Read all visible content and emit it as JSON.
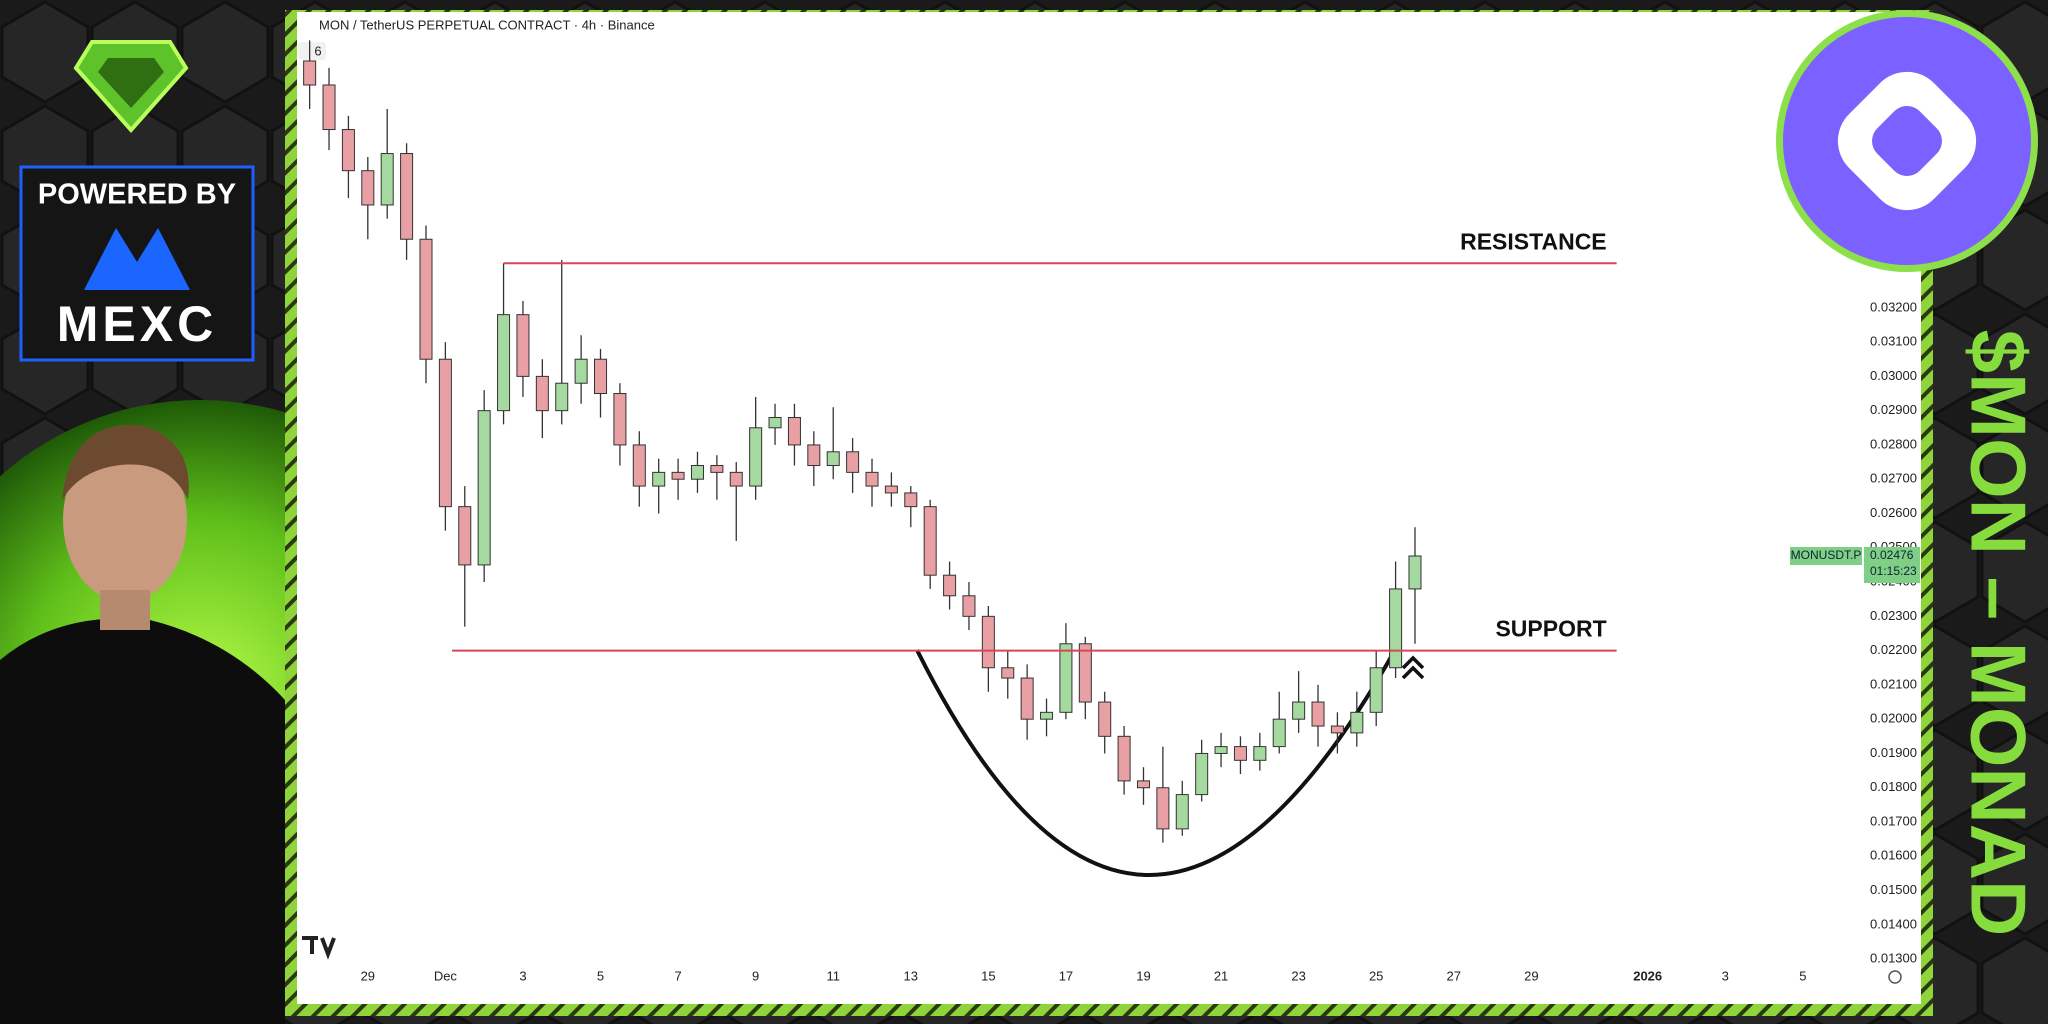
{
  "chart_data": {
    "type": "candlestick",
    "title": "MON / TetherUS PERPETUAL CONTRACT · 4h · Binance",
    "indicator_count": "6",
    "x": [
      -3.5,
      -3,
      -2.5,
      -2,
      -1.5,
      -1,
      -0.5,
      0,
      0.5,
      1,
      1.5,
      2,
      2.5,
      3,
      3.5,
      4,
      4.5,
      5,
      5.5,
      6,
      6.5,
      7,
      7.5,
      8,
      8.5,
      9,
      9.5,
      10,
      10.5,
      11,
      11.5,
      12,
      12.5,
      13,
      13.5,
      14,
      14.5,
      15,
      15.5,
      16,
      16.5,
      17,
      17.5,
      18,
      18.5,
      19,
      19.5,
      20,
      20.5,
      21,
      21.5,
      22,
      22.5,
      23,
      23.5,
      24,
      24.5,
      25
    ],
    "open": [
      0.0392,
      0.0385,
      0.0372,
      0.036,
      0.035,
      0.0365,
      0.034,
      0.0305,
      0.0262,
      0.0245,
      0.029,
      0.0318,
      0.03,
      0.029,
      0.0298,
      0.0305,
      0.0295,
      0.028,
      0.0268,
      0.0272,
      0.027,
      0.0274,
      0.0272,
      0.0268,
      0.0285,
      0.0288,
      0.028,
      0.0274,
      0.0278,
      0.0272,
      0.0268,
      0.0266,
      0.0262,
      0.0242,
      0.0236,
      0.023,
      0.0215,
      0.0212,
      0.02,
      0.0202,
      0.0222,
      0.0205,
      0.0195,
      0.0182,
      0.018,
      0.0168,
      0.0178,
      0.019,
      0.0192,
      0.0188,
      0.0192,
      0.02,
      0.0205,
      0.0198,
      0.0196,
      0.0202,
      0.0215,
      0.0238
    ],
    "high": [
      0.0398,
      0.039,
      0.0376,
      0.0364,
      0.0378,
      0.0368,
      0.0344,
      0.031,
      0.0268,
      0.0296,
      0.0333,
      0.0322,
      0.0305,
      0.0334,
      0.0312,
      0.0308,
      0.0298,
      0.0284,
      0.0276,
      0.0276,
      0.0278,
      0.0277,
      0.0275,
      0.0294,
      0.0292,
      0.0292,
      0.0284,
      0.0291,
      0.0282,
      0.0276,
      0.0272,
      0.0268,
      0.0264,
      0.0246,
      0.024,
      0.0233,
      0.022,
      0.0216,
      0.0206,
      0.0228,
      0.0224,
      0.0208,
      0.0198,
      0.0186,
      0.0192,
      0.0182,
      0.0194,
      0.0196,
      0.0195,
      0.0196,
      0.0208,
      0.0214,
      0.021,
      0.0202,
      0.0208,
      0.022,
      0.0246,
      0.0256
    ],
    "low": [
      0.0378,
      0.0366,
      0.0352,
      0.034,
      0.0346,
      0.0334,
      0.0298,
      0.0255,
      0.0227,
      0.024,
      0.0286,
      0.0294,
      0.0282,
      0.0286,
      0.0292,
      0.0288,
      0.0274,
      0.0262,
      0.026,
      0.0264,
      0.0266,
      0.0264,
      0.0252,
      0.0264,
      0.028,
      0.0274,
      0.0268,
      0.027,
      0.0266,
      0.0262,
      0.0262,
      0.0256,
      0.0238,
      0.0232,
      0.0226,
      0.0208,
      0.0206,
      0.0194,
      0.0195,
      0.02,
      0.02,
      0.019,
      0.0178,
      0.0175,
      0.0164,
      0.0166,
      0.0176,
      0.0186,
      0.0184,
      0.0185,
      0.019,
      0.0196,
      0.0192,
      0.019,
      0.0192,
      0.0198,
      0.0212,
      0.0222
    ],
    "close": [
      0.0385,
      0.0372,
      0.036,
      0.035,
      0.0365,
      0.034,
      0.0305,
      0.0262,
      0.0245,
      0.029,
      0.0318,
      0.03,
      0.029,
      0.0298,
      0.0305,
      0.0295,
      0.028,
      0.0268,
      0.0272,
      0.027,
      0.0274,
      0.0272,
      0.0268,
      0.0285,
      0.0288,
      0.028,
      0.0274,
      0.0278,
      0.0272,
      0.0268,
      0.0266,
      0.0262,
      0.0242,
      0.0236,
      0.023,
      0.0215,
      0.0212,
      0.02,
      0.0202,
      0.0222,
      0.0205,
      0.0195,
      0.0182,
      0.018,
      0.0168,
      0.0178,
      0.019,
      0.0192,
      0.0188,
      0.0192,
      0.02,
      0.0205,
      0.0198,
      0.0196,
      0.0202,
      0.0215,
      0.0238,
      0.02476
    ],
    "up_color": "#a6d9a0",
    "down_color": "#e8a0a4",
    "xlim": [
      -3.8,
      36.5
    ],
    "xticks": [
      {
        "value": -2,
        "label": "29"
      },
      {
        "value": 0,
        "label": "Dec"
      },
      {
        "value": 2,
        "label": "3"
      },
      {
        "value": 4,
        "label": "5"
      },
      {
        "value": 6,
        "label": "7"
      },
      {
        "value": 8,
        "label": "9"
      },
      {
        "value": 10,
        "label": "11"
      },
      {
        "value": 12,
        "label": "13"
      },
      {
        "value": 14,
        "label": "15"
      },
      {
        "value": 16,
        "label": "17"
      },
      {
        "value": 18,
        "label": "19"
      },
      {
        "value": 20,
        "label": "21"
      },
      {
        "value": 22,
        "label": "23"
      },
      {
        "value": 24,
        "label": "25"
      },
      {
        "value": 26,
        "label": "27"
      },
      {
        "value": 28,
        "label": "29"
      },
      {
        "value": 31,
        "label": "2026"
      },
      {
        "value": 33,
        "label": "3"
      },
      {
        "value": 35,
        "label": "5"
      }
    ],
    "ylim": [
      0.0128,
      0.0406
    ],
    "yticks": [
      {
        "value": 0.013,
        "label": "0.01300"
      },
      {
        "value": 0.014,
        "label": "0.01400"
      },
      {
        "value": 0.015,
        "label": "0.01500"
      },
      {
        "value": 0.016,
        "label": "0.01600"
      },
      {
        "value": 0.017,
        "label": "0.01700"
      },
      {
        "value": 0.018,
        "label": "0.01800"
      },
      {
        "value": 0.019,
        "label": "0.01900"
      },
      {
        "value": 0.02,
        "label": "0.02000"
      },
      {
        "value": 0.021,
        "label": "0.02100"
      },
      {
        "value": 0.022,
        "label": "0.02200"
      },
      {
        "value": 0.023,
        "label": "0.02300"
      },
      {
        "value": 0.024,
        "label": "0.02400"
      },
      {
        "value": 0.025,
        "label": "0.02500"
      },
      {
        "value": 0.026,
        "label": "0.02600"
      },
      {
        "value": 0.027,
        "label": "0.02700"
      },
      {
        "value": 0.028,
        "label": "0.02800"
      },
      {
        "value": 0.029,
        "label": "0.02900"
      },
      {
        "value": 0.03,
        "label": "0.03000"
      },
      {
        "value": 0.031,
        "label": "0.03100"
      },
      {
        "value": 0.032,
        "label": "0.03200"
      }
    ],
    "grid": false,
    "levels": [
      {
        "label": "RESISTANCE",
        "value": 0.0333,
        "x": [
          1.5,
          30.2
        ],
        "color": "#d9465a"
      },
      {
        "label": "SUPPORT",
        "value": 0.022,
        "x": [
          0.17,
          30.2
        ],
        "color": "#d9465a"
      }
    ],
    "last_price": {
      "symbol": "MONUSDT.P",
      "value": 0.02476,
      "label": "0.02476",
      "countdown": "01:15:23",
      "color": "#7fcf86"
    }
  },
  "branding": {
    "powered_by": "POWERED BY",
    "sponsor": "MEXC",
    "headline": "$MON – MONAD"
  }
}
